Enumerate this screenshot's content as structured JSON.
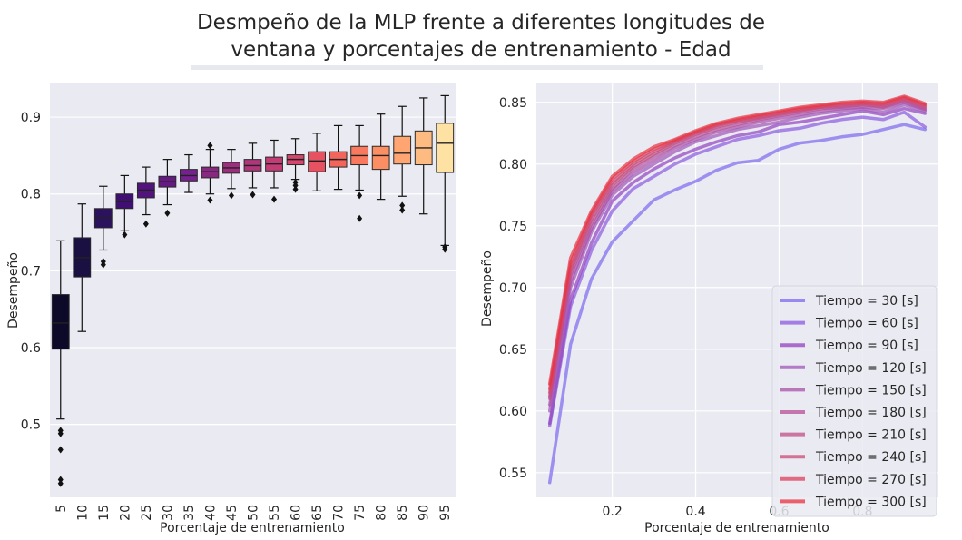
{
  "title": "Desmpeño de la MLP frente a diferentes longitudes de\n ventana y porcentajes de entrenamiento  - Edad",
  "chart_data": [
    {
      "type": "boxplot",
      "xlabel": "Porcentaje de entrenamiento",
      "ylabel": "Desempeño",
      "ylim": [
        0.405,
        0.945
      ],
      "yticks": [
        0.5,
        0.6,
        0.7,
        0.8,
        0.9
      ],
      "grid": true,
      "categories": [
        "5",
        "10",
        "15",
        "20",
        "25",
        "30",
        "35",
        "40",
        "45",
        "50",
        "55",
        "60",
        "65",
        "70",
        "75",
        "80",
        "85",
        "90",
        "95"
      ],
      "boxes": [
        {
          "whislo": 0.507,
          "q1": 0.598,
          "med": 0.632,
          "q3": 0.669,
          "whishi": 0.739,
          "fliers": [
            0.492,
            0.488,
            0.467,
            0.428,
            0.423
          ]
        },
        {
          "whislo": 0.621,
          "q1": 0.692,
          "med": 0.717,
          "q3": 0.743,
          "whishi": 0.787,
          "fliers": []
        },
        {
          "whislo": 0.727,
          "q1": 0.756,
          "med": 0.769,
          "q3": 0.781,
          "whishi": 0.81,
          "fliers": [
            0.712,
            0.708
          ]
        },
        {
          "whislo": 0.752,
          "q1": 0.781,
          "med": 0.79,
          "q3": 0.8,
          "whishi": 0.824,
          "fliers": [
            0.747
          ]
        },
        {
          "whislo": 0.773,
          "q1": 0.795,
          "med": 0.805,
          "q3": 0.814,
          "whishi": 0.835,
          "fliers": [
            0.761
          ]
        },
        {
          "whislo": 0.786,
          "q1": 0.809,
          "med": 0.816,
          "q3": 0.823,
          "whishi": 0.845,
          "fliers": [
            0.775
          ]
        },
        {
          "whislo": 0.802,
          "q1": 0.817,
          "med": 0.824,
          "q3": 0.832,
          "whishi": 0.851,
          "fliers": []
        },
        {
          "whislo": 0.8,
          "q1": 0.821,
          "med": 0.829,
          "q3": 0.835,
          "whishi": 0.858,
          "fliers": [
            0.863,
            0.792
          ]
        },
        {
          "whislo": 0.807,
          "q1": 0.827,
          "med": 0.834,
          "q3": 0.841,
          "whishi": 0.858,
          "fliers": [
            0.798
          ]
        },
        {
          "whislo": 0.808,
          "q1": 0.83,
          "med": 0.837,
          "q3": 0.845,
          "whishi": 0.866,
          "fliers": [
            0.799
          ]
        },
        {
          "whislo": 0.808,
          "q1": 0.83,
          "med": 0.839,
          "q3": 0.848,
          "whishi": 0.87,
          "fliers": [
            0.793
          ]
        },
        {
          "whislo": 0.819,
          "q1": 0.838,
          "med": 0.845,
          "q3": 0.851,
          "whishi": 0.872,
          "fliers": [
            0.815,
            0.811,
            0.806
          ]
        },
        {
          "whislo": 0.804,
          "q1": 0.829,
          "med": 0.843,
          "q3": 0.855,
          "whishi": 0.879,
          "fliers": []
        },
        {
          "whislo": 0.806,
          "q1": 0.835,
          "med": 0.845,
          "q3": 0.855,
          "whishi": 0.889,
          "fliers": []
        },
        {
          "whislo": 0.805,
          "q1": 0.838,
          "med": 0.85,
          "q3": 0.862,
          "whishi": 0.889,
          "fliers": [
            0.798,
            0.768
          ]
        },
        {
          "whislo": 0.793,
          "q1": 0.832,
          "med": 0.85,
          "q3": 0.862,
          "whishi": 0.904,
          "fliers": []
        },
        {
          "whislo": 0.797,
          "q1": 0.839,
          "med": 0.853,
          "q3": 0.875,
          "whishi": 0.914,
          "fliers": [
            0.785,
            0.779
          ]
        },
        {
          "whislo": 0.774,
          "q1": 0.838,
          "med": 0.86,
          "q3": 0.882,
          "whishi": 0.925,
          "fliers": []
        },
        {
          "whislo": 0.733,
          "q1": 0.828,
          "med": 0.866,
          "q3": 0.892,
          "whishi": 0.928,
          "fliers": [
            0.731,
            0.728
          ]
        }
      ],
      "colors": [
        "#0d0a29",
        "#1a1042",
        "#2c115f",
        "#3f0f72",
        "#52137c",
        "#641a80",
        "#76218f",
        "#892881",
        "#9c2e7f",
        "#b0357b",
        "#c43c75",
        "#d6456c",
        "#e75263",
        "#f2645c",
        "#f8795d",
        "#fb8e62",
        "#fea571",
        "#febb81",
        "#fde2a3"
      ]
    },
    {
      "type": "line",
      "xlabel": "Porcentaje de entrenamiento",
      "ylabel": "Desempeño",
      "xlim": [
        0.018,
        0.982
      ],
      "ylim": [
        0.53,
        0.866
      ],
      "xticks": [
        0.2,
        0.4,
        0.6,
        0.8
      ],
      "yticks": [
        0.55,
        0.6,
        0.65,
        0.7,
        0.75,
        0.8,
        0.85
      ],
      "grid": true,
      "legend_loc": "lower-right",
      "x": [
        0.05,
        0.1,
        0.15,
        0.2,
        0.25,
        0.3,
        0.35,
        0.4,
        0.45,
        0.5,
        0.55,
        0.6,
        0.65,
        0.7,
        0.75,
        0.8,
        0.85,
        0.9,
        0.95
      ],
      "series": [
        {
          "name": "Tiempo = 30 [s]",
          "color": "#7b68ee",
          "values": [
            0.542,
            0.654,
            0.707,
            0.737,
            0.754,
            0.771,
            0.779,
            0.786,
            0.795,
            0.801,
            0.803,
            0.812,
            0.817,
            0.819,
            0.822,
            0.824,
            0.828,
            0.832,
            0.828
          ]
        },
        {
          "name": "Tiempo = 60 [s]",
          "color": "#8a5ae0",
          "values": [
            0.588,
            0.685,
            0.73,
            0.762,
            0.78,
            0.79,
            0.8,
            0.808,
            0.814,
            0.82,
            0.823,
            0.827,
            0.829,
            0.833,
            0.836,
            0.838,
            0.836,
            0.842,
            0.83
          ]
        },
        {
          "name": "Tiempo = 90 [s]",
          "color": "#9342c0",
          "values": [
            0.59,
            0.69,
            0.736,
            0.77,
            0.785,
            0.796,
            0.805,
            0.812,
            0.818,
            0.823,
            0.826,
            0.832,
            0.834,
            0.837,
            0.84,
            0.843,
            0.84,
            0.845,
            0.841
          ]
        },
        {
          "name": "Tiempo = 120 [s]",
          "color": "#a055b8",
          "values": [
            0.6,
            0.7,
            0.745,
            0.775,
            0.79,
            0.8,
            0.81,
            0.818,
            0.823,
            0.828,
            0.831,
            0.834,
            0.838,
            0.841,
            0.843,
            0.845,
            0.842,
            0.848,
            0.843
          ]
        },
        {
          "name": "Tiempo = 150 [s]",
          "color": "#aa4fa8",
          "values": [
            0.605,
            0.705,
            0.748,
            0.778,
            0.793,
            0.803,
            0.813,
            0.82,
            0.826,
            0.83,
            0.834,
            0.837,
            0.84,
            0.843,
            0.845,
            0.846,
            0.845,
            0.85,
            0.844
          ]
        },
        {
          "name": "Tiempo = 180 [s]",
          "color": "#b54f95",
          "values": [
            0.61,
            0.71,
            0.752,
            0.78,
            0.796,
            0.806,
            0.815,
            0.822,
            0.828,
            0.832,
            0.836,
            0.839,
            0.842,
            0.845,
            0.846,
            0.848,
            0.846,
            0.851,
            0.845
          ]
        },
        {
          "name": "Tiempo = 210 [s]",
          "color": "#c04e85",
          "values": [
            0.612,
            0.713,
            0.755,
            0.783,
            0.798,
            0.808,
            0.817,
            0.824,
            0.83,
            0.834,
            0.837,
            0.84,
            0.843,
            0.846,
            0.847,
            0.848,
            0.847,
            0.852,
            0.846
          ]
        },
        {
          "name": "Tiempo = 240 [s]",
          "color": "#cc4a74",
          "values": [
            0.615,
            0.716,
            0.758,
            0.785,
            0.8,
            0.81,
            0.818,
            0.825,
            0.831,
            0.835,
            0.838,
            0.841,
            0.844,
            0.846,
            0.848,
            0.849,
            0.848,
            0.853,
            0.847
          ]
        },
        {
          "name": "Tiempo = 270 [s]",
          "color": "#dd3f5c",
          "values": [
            0.618,
            0.72,
            0.76,
            0.788,
            0.802,
            0.812,
            0.819,
            0.826,
            0.832,
            0.836,
            0.839,
            0.842,
            0.845,
            0.847,
            0.849,
            0.85,
            0.849,
            0.854,
            0.848
          ]
        },
        {
          "name": "Tiempo = 300 [s]",
          "color": "#e8303f",
          "values": [
            0.622,
            0.724,
            0.762,
            0.79,
            0.804,
            0.814,
            0.82,
            0.827,
            0.833,
            0.837,
            0.84,
            0.843,
            0.846,
            0.848,
            0.85,
            0.851,
            0.85,
            0.855,
            0.849
          ]
        }
      ]
    }
  ]
}
